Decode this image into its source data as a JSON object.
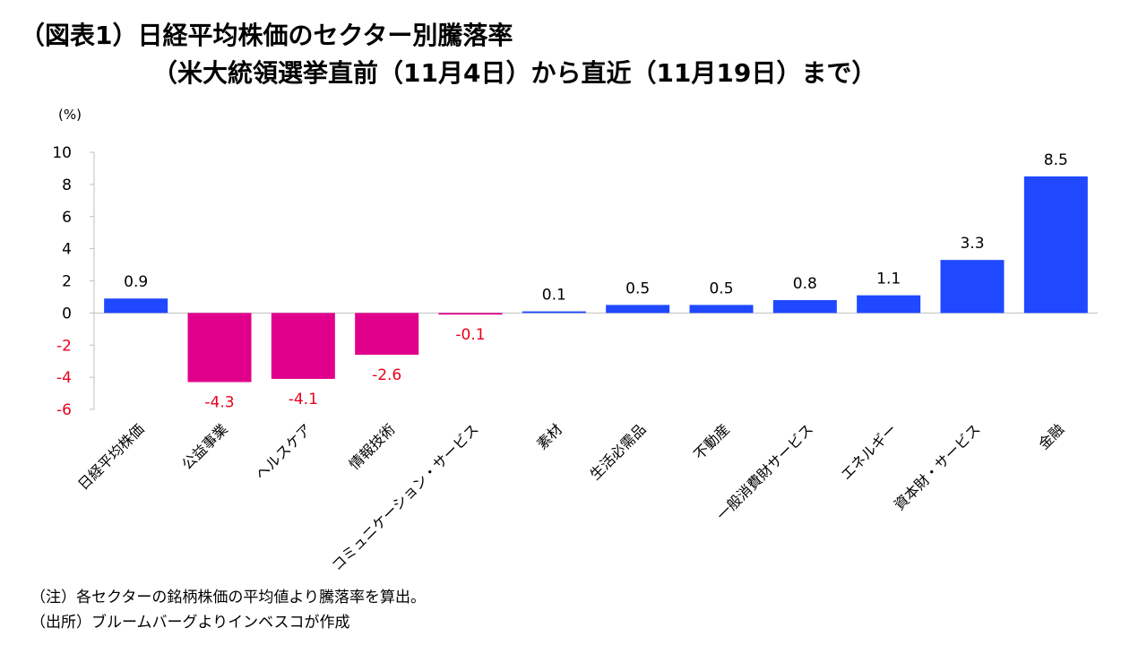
{
  "title": {
    "line1": "（図表1）日経平均株価のセクター別騰落率",
    "line2": "（米大統領選挙直前（11月4日）から直近（11月19日）まで）"
  },
  "notes": {
    "note": "（注）各セクターの銘柄株価の平均値より騰落率を算出。",
    "source": "（出所）ブルームバーグよりインベスコが作成"
  },
  "colors": {
    "positive": "#1f48ff",
    "negative": "#e0008c",
    "negative_label": "#e8001c",
    "text": "#000000"
  },
  "chart_data": {
    "type": "bar",
    "title": "日経平均株価のセクター別騰落率",
    "unit_label": "(%)",
    "ylim": [
      -6,
      10
    ],
    "yticks": [
      10,
      8,
      6,
      4,
      2,
      0,
      -2,
      -4,
      -6
    ],
    "categories": [
      "日経平均株価",
      "公益事業",
      "ヘルスケア",
      "情報技術",
      "コミュニケーション・サービス",
      "素材",
      "生活必需品",
      "不動産",
      "一般消費財サービス",
      "エネルギー",
      "資本財・サービス",
      "金融"
    ],
    "values": [
      0.9,
      -4.3,
      -4.1,
      -2.6,
      -0.1,
      0.1,
      0.5,
      0.5,
      0.8,
      1.1,
      3.3,
      8.5
    ],
    "value_labels": [
      "0.9",
      "-4.3",
      "-4.1",
      "-2.6",
      "-0.1",
      "0.1",
      "0.5",
      "0.5",
      "0.8",
      "1.1",
      "3.3",
      "8.5"
    ]
  }
}
